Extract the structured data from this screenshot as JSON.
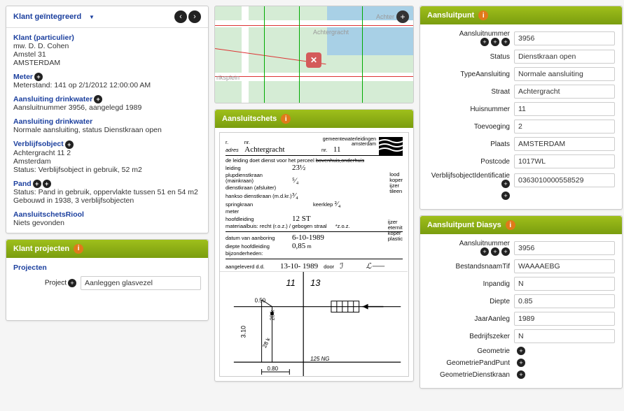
{
  "klant_panel": {
    "title": "Klant geïntegreerd",
    "sections": {
      "klant": {
        "title": "Klant (particulier)",
        "lines": [
          "mw. D. D. Cohen",
          "Amstel 31",
          "AMSTERDAM"
        ]
      },
      "meter": {
        "title": "Meter",
        "line": "Meterstand: 141 op 2/1/2012 12:00:00 AM"
      },
      "aansluiting1": {
        "title": "Aansluiting drinkwater",
        "line": "Aansluitnummer 3956, aangelegd 1989"
      },
      "aansluiting2": {
        "title": "Aansluiting drinkwater",
        "line": "Normale aansluiting, status Dienstkraan open"
      },
      "verblijf": {
        "title": "Verblijfsobject",
        "lines": [
          "Achtergracht 11 2",
          "Amsterdam",
          "Status: Verblijfsobject in gebruik, 52 m2"
        ]
      },
      "pand": {
        "title": "Pand",
        "lines": [
          "Status: Pand in gebruik, oppervlakte tussen 51 en 54 m2",
          "Gebouwd in 1938, 3 verblijfsobjecten"
        ]
      },
      "riool": {
        "title": "AansluitschetsRiool",
        "line": "Niets gevonden"
      }
    }
  },
  "projecten_panel": {
    "title": "Klant projecten",
    "subtitle": "Projecten",
    "project_label": "Project",
    "project_value": "Aanleggen glasvezel"
  },
  "aansluitschets_panel": {
    "title": "Aansluitschets",
    "org": "gemeentewaterleidingen\namsterdam",
    "street_label": "Achtergracht",
    "nr": "11",
    "detail_text": "de leiding doet dienst voor het perceel",
    "rows": {
      "leiding": "23½",
      "plupdienstkraan": "⁵⁄₄",
      "hankso": "³⁄₄",
      "keerklep": "²⁄₄",
      "hoofdleiding": "12 ST",
      "materiaal": "materiaalbuis: recht (r.o.z.) / gebogen straal",
      "oz": "*z.o.z.",
      "datum_aanboring": "6-10-1989",
      "diepte": "0,85",
      "angeleverd": "13-10- 19",
      "mat1": "lood\nkoper\nijzer\ntileen",
      "mat2": "ijzer\neternit\nkoper\nplastic"
    }
  },
  "aansluitpunt_panel": {
    "title": "Aansluitpunt",
    "fields": {
      "Aansluitnummer": "3956",
      "Status": "Dienstkraan open",
      "TypeAansluiting": "Normale aansluiting",
      "Straat": "Achtergracht",
      "Huisnummer": "11",
      "Toevoeging": "2",
      "Plaats": "AMSTERDAM",
      "Postcode": "1017WL",
      "VerblijfsobjectIdentificatie": "0363010000558529"
    }
  },
  "diasys_panel": {
    "title": "Aansluitpunt Diasys",
    "fields": {
      "Aansluitnummer": "3956",
      "BestandsnaamTif": "WAAAAEBG",
      "Inpandig": "N",
      "Diepte": "0.85",
      "JaarAanleg": "1989",
      "Bedrijfszeker": "N",
      "Geometrie": "",
      "GeometriePandPunt": "",
      "GeometrieDienstkraan": ""
    }
  },
  "map": {
    "street1": "Achtergracht",
    "street2": "Achter",
    "plein": "riksplein"
  }
}
